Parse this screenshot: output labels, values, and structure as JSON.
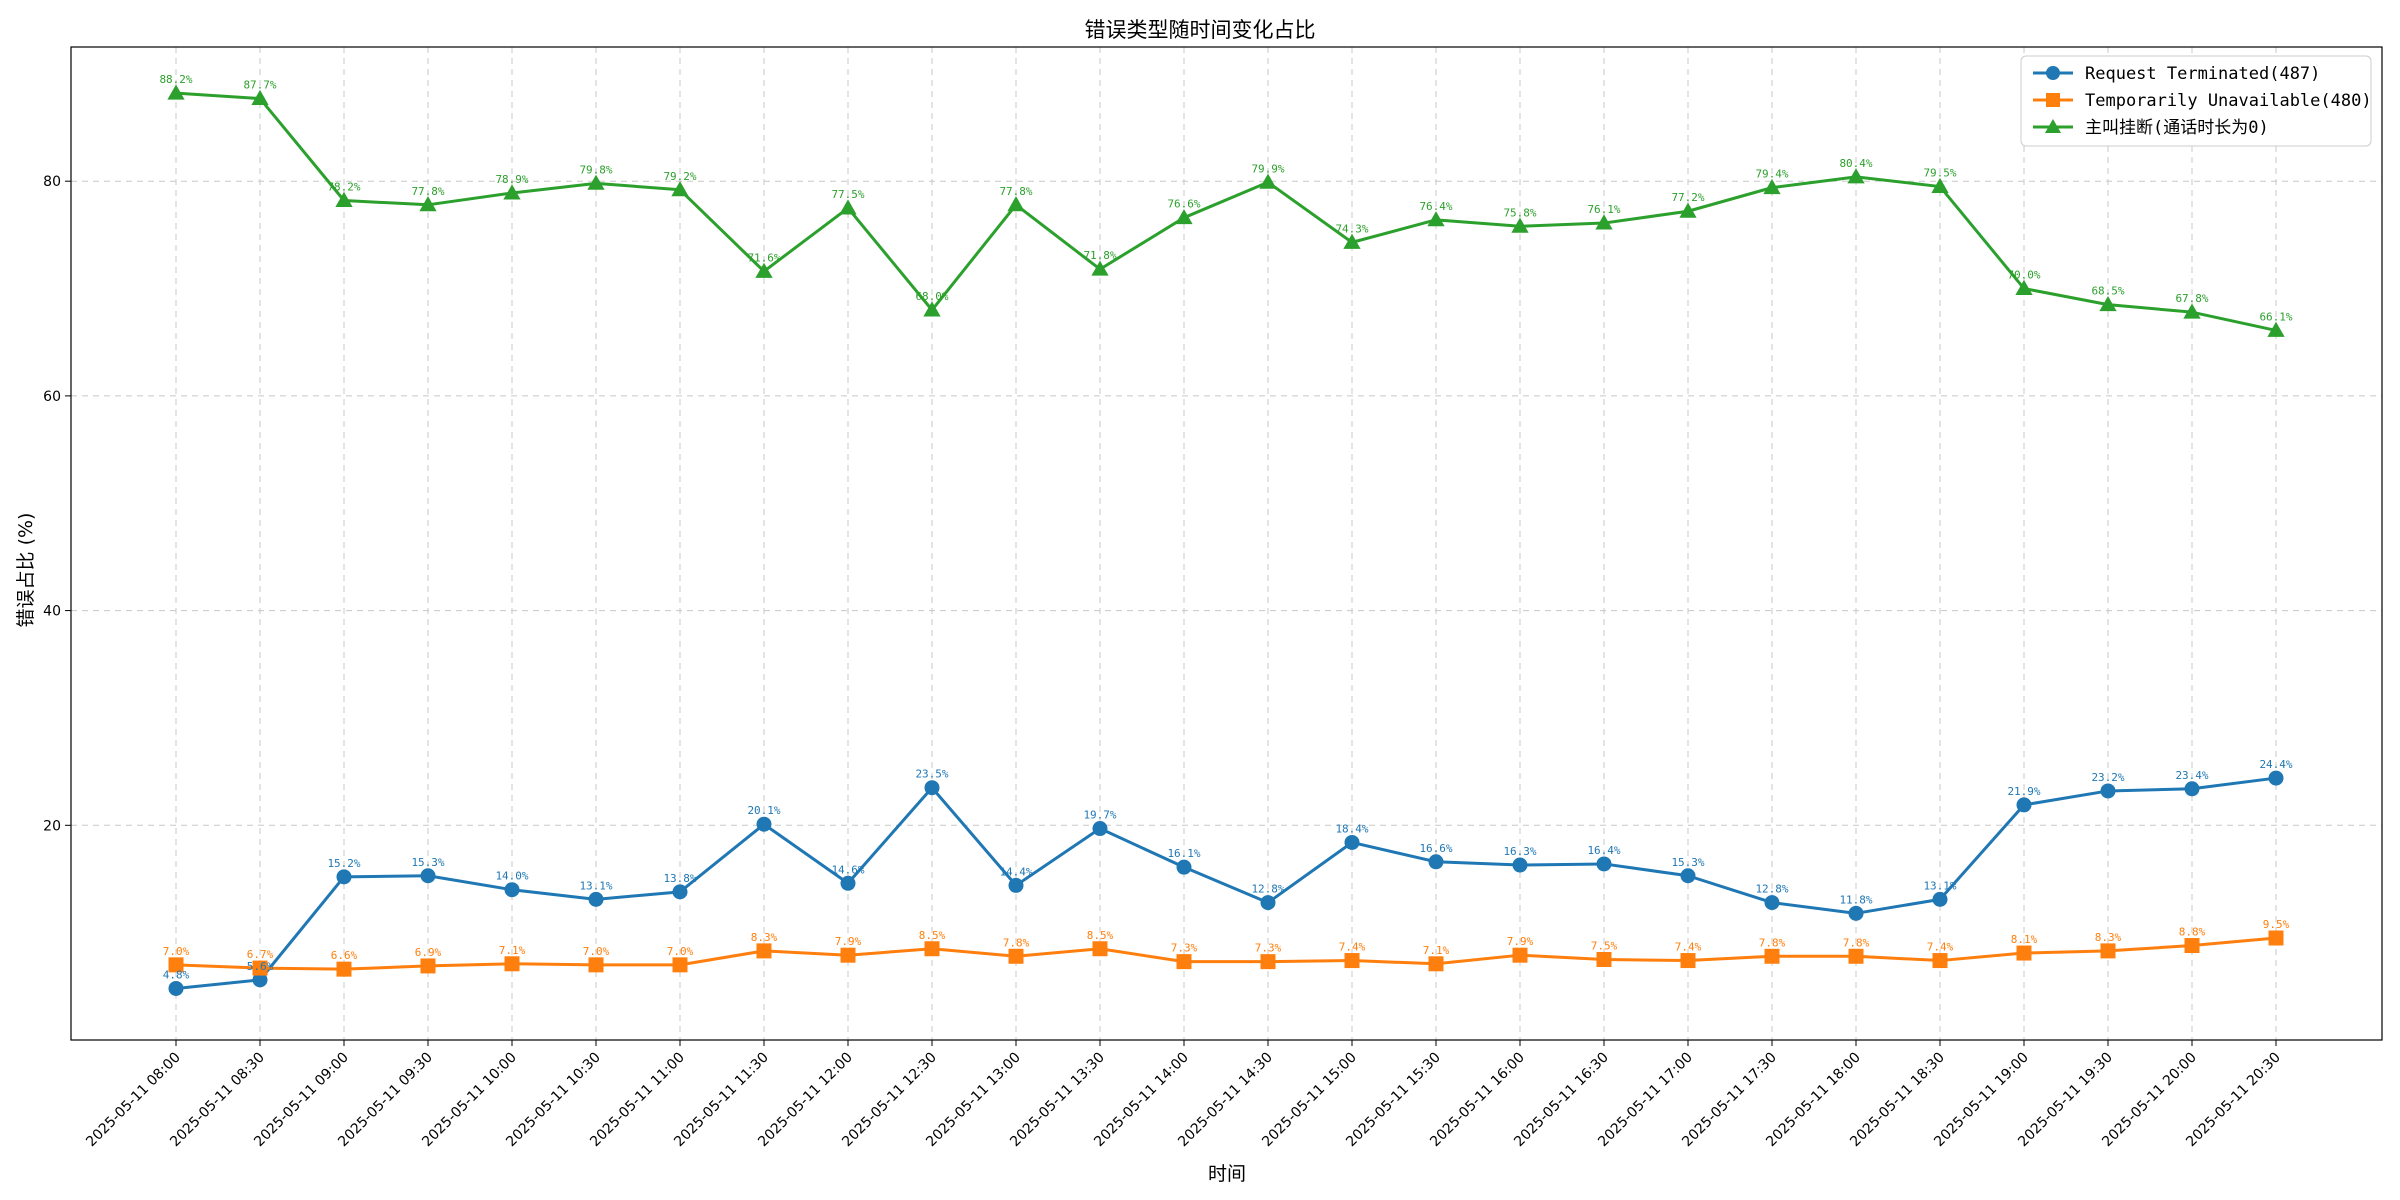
{
  "chart_data": {
    "type": "line",
    "title": "错误类型随时间变化占比",
    "xlabel": "时间",
    "ylabel": "错误占比 (%)",
    "ylim": [
      0,
      92.5
    ],
    "yticks": [
      20,
      40,
      60,
      80
    ],
    "grid": true,
    "legend_position": "top-right",
    "categories": [
      "2025-05-11 08:00",
      "2025-05-11 08:30",
      "2025-05-11 09:00",
      "2025-05-11 09:30",
      "2025-05-11 10:00",
      "2025-05-11 10:30",
      "2025-05-11 11:00",
      "2025-05-11 11:30",
      "2025-05-11 12:00",
      "2025-05-11 12:30",
      "2025-05-11 13:00",
      "2025-05-11 13:30",
      "2025-05-11 14:00",
      "2025-05-11 14:30",
      "2025-05-11 15:00",
      "2025-05-11 15:30",
      "2025-05-11 16:00",
      "2025-05-11 16:30",
      "2025-05-11 17:00",
      "2025-05-11 17:30",
      "2025-05-11 18:00",
      "2025-05-11 18:30",
      "2025-05-11 19:00",
      "2025-05-11 19:30",
      "2025-05-11 20:00",
      "2025-05-11 20:30"
    ],
    "series": [
      {
        "name": "Request Terminated(487)",
        "color": "#1f77b4",
        "marker": "circle",
        "values": [
          4.8,
          5.6,
          15.2,
          15.3,
          14.0,
          13.1,
          13.8,
          20.1,
          14.6,
          23.5,
          14.4,
          19.7,
          16.1,
          12.8,
          18.4,
          16.6,
          16.3,
          16.4,
          15.3,
          12.8,
          11.8,
          13.1,
          21.9,
          23.2,
          23.4,
          24.4
        ]
      },
      {
        "name": "Temporarily Unavailable(480)",
        "color": "#ff7f0e",
        "marker": "square",
        "values": [
          7.0,
          6.7,
          6.6,
          6.9,
          7.1,
          7.0,
          7.0,
          8.3,
          7.9,
          8.5,
          7.8,
          8.5,
          7.3,
          7.3,
          7.4,
          7.1,
          7.9,
          7.5,
          7.4,
          7.8,
          7.8,
          7.4,
          8.1,
          8.3,
          8.8,
          9.5
        ]
      },
      {
        "name": "主叫挂断(通话时长为0)",
        "color": "#2ca02c",
        "marker": "triangle",
        "values": [
          88.2,
          87.7,
          78.2,
          77.8,
          78.9,
          79.8,
          79.2,
          71.6,
          77.5,
          68.0,
          77.8,
          71.8,
          76.6,
          79.9,
          74.3,
          76.4,
          75.8,
          76.1,
          77.2,
          79.4,
          80.4,
          79.5,
          70.0,
          68.5,
          67.8,
          66.1
        ]
      }
    ]
  }
}
